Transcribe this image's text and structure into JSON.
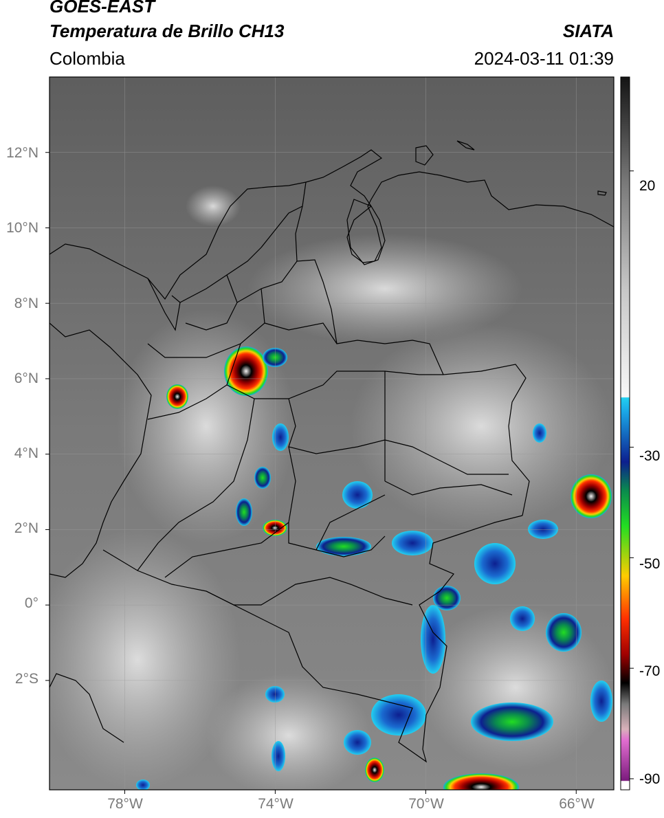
{
  "header": {
    "satellite": "GOES-EAST",
    "product": "Temperatura de Brillo CH13",
    "brand": "SIATA",
    "region": "Colombia",
    "datetime": "2024-03-11 01:39"
  },
  "axes": {
    "lat_labels": [
      "12°N",
      "10°N",
      "8°N",
      "6°N",
      "4°N",
      "2°N",
      "0°",
      "2°S"
    ],
    "lon_labels": [
      "78°W",
      "74°W",
      "70°W",
      "66°W"
    ],
    "lat_values": [
      12,
      10,
      8,
      6,
      4,
      2,
      0,
      -2
    ],
    "lon_values": [
      -78,
      -74,
      -70,
      -66
    ],
    "extent": {
      "lon_min": -80,
      "lon_max": -65,
      "lat_min": -4.9,
      "lat_max": 14
    }
  },
  "colorbar": {
    "tick_labels": [
      "20",
      "-30",
      "-50",
      "-70",
      "-90"
    ],
    "tick_values": [
      20,
      -30,
      -50,
      -70,
      -90
    ],
    "range": [
      -92,
      37
    ],
    "colors": [
      "#ffffff",
      "#7b1b7e",
      "#e26fd0",
      "#d9b1ba",
      "#3a3a3a",
      "#000000",
      "#a00000",
      "#ff3000",
      "#ffcc00",
      "#22dd22",
      "#0a8a4e",
      "#0d1f8f",
      "#1aa6e6",
      "#22d0f0",
      "#f2f2f2",
      "#6a6a6a",
      "#141414"
    ]
  },
  "map_colors": {
    "background_gray": "#6e6e6e",
    "border": "#000000",
    "grid": "#9a9a9a"
  }
}
